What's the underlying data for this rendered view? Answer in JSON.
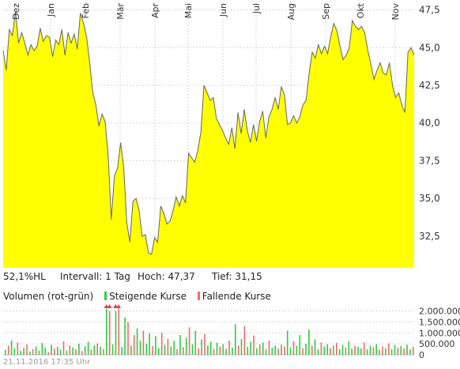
{
  "chart_data": [
    {
      "type": "area",
      "x_ticks": [
        "Dez",
        "Jan",
        "Feb",
        "Mär",
        "Apr",
        "Mai",
        "Jun",
        "Jul",
        "Aug",
        "Sep",
        "Okt",
        "Nov"
      ],
      "y_ticks": [
        "47,5",
        "45,0",
        "42,5",
        "40,0",
        "37,5",
        "35,0",
        "32,5"
      ],
      "ylim": [
        30.4,
        48.0
      ],
      "fill_color": "#ffff00",
      "line_color": "#666666",
      "values": [
        44.8,
        43.5,
        46.2,
        45.8,
        47.4,
        45.3,
        46.0,
        45.3,
        44.5,
        45.2,
        44.8,
        45.1,
        46.3,
        45.4,
        45.8,
        45.7,
        44.4,
        45.5,
        45.2,
        46.2,
        44.5,
        46.0,
        45.3,
        45.9,
        44.9,
        47.3,
        46.6,
        45.7,
        44.0,
        42.0,
        41.2,
        39.8,
        40.6,
        40.1,
        37.8,
        33.6,
        36.5,
        37.0,
        38.7,
        37.1,
        33.4,
        32.1,
        34.8,
        35.0,
        34.2,
        32.5,
        32.6,
        31.4,
        31.3,
        32.4,
        32.1,
        34.5,
        34.0,
        33.3,
        33.5,
        34.2,
        35.1,
        34.5,
        35.2,
        34.7,
        38.0,
        37.7,
        37.4,
        38.2,
        39.4,
        42.5,
        42.0,
        41.5,
        41.7,
        40.3,
        39.9,
        39.5,
        39.0,
        38.6,
        39.7,
        38.3,
        40.7,
        39.3,
        40.9,
        39.5,
        38.7,
        39.9,
        38.8,
        40.1,
        40.8,
        39.0,
        40.4,
        40.9,
        41.7,
        40.9,
        42.4,
        41.9,
        39.9,
        40.0,
        40.5,
        40.0,
        40.4,
        41.2,
        41.5,
        43.3,
        44.7,
        44.3,
        45.2,
        44.6,
        45.1,
        44.6,
        45.7,
        46.6,
        46.1,
        45.1,
        44.2,
        44.5,
        45.0,
        46.8,
        46.4,
        46.2,
        46.4,
        46.0,
        44.8,
        43.9,
        42.9,
        43.5,
        44.0,
        43.3,
        43.2,
        44.0,
        42.5,
        41.7,
        42.0,
        41.2,
        40.7,
        44.7,
        45.0,
        44.5
      ],
      "volume_ylim": [
        0,
        2200000
      ],
      "volume_ticks": [
        "2.000.000",
        "1.500.000",
        "1.000.000",
        "500.000",
        "0"
      ],
      "volume_up_color": "#2ecc40",
      "volume_down_color": "#f06a6a",
      "volume": [
        [
          220000,
          "u"
        ],
        [
          410000,
          "d"
        ],
        [
          650000,
          "u"
        ],
        [
          300000,
          "u"
        ],
        [
          560000,
          "d"
        ],
        [
          180000,
          "u"
        ],
        [
          320000,
          "u"
        ],
        [
          470000,
          "d"
        ],
        [
          150000,
          "u"
        ],
        [
          260000,
          "d"
        ],
        [
          380000,
          "u"
        ],
        [
          200000,
          "d"
        ],
        [
          540000,
          "u"
        ],
        [
          310000,
          "u"
        ],
        [
          120000,
          "d"
        ],
        [
          450000,
          "u"
        ],
        [
          280000,
          "d"
        ],
        [
          360000,
          "u"
        ],
        [
          230000,
          "u"
        ],
        [
          620000,
          "d"
        ],
        [
          190000,
          "u"
        ],
        [
          420000,
          "d"
        ],
        [
          330000,
          "u"
        ],
        [
          250000,
          "d"
        ],
        [
          510000,
          "u"
        ],
        [
          170000,
          "d"
        ],
        [
          390000,
          "u"
        ],
        [
          600000,
          "u"
        ],
        [
          240000,
          "d"
        ],
        [
          430000,
          "u"
        ],
        [
          520000,
          "d"
        ],
        [
          360000,
          "u"
        ],
        [
          270000,
          "d"
        ],
        [
          2100000,
          "u"
        ],
        [
          2000000,
          "d"
        ],
        [
          480000,
          "u"
        ],
        [
          2000000,
          "u"
        ],
        [
          2100000,
          "d"
        ],
        [
          350000,
          "u"
        ],
        [
          1700000,
          "u"
        ],
        [
          1500000,
          "d"
        ],
        [
          420000,
          "u"
        ],
        [
          900000,
          "d"
        ],
        [
          1200000,
          "u"
        ],
        [
          650000,
          "u"
        ],
        [
          1100000,
          "d"
        ],
        [
          520000,
          "u"
        ],
        [
          980000,
          "u"
        ],
        [
          400000,
          "d"
        ],
        [
          860000,
          "u"
        ],
        [
          300000,
          "u"
        ],
        [
          1000000,
          "d"
        ],
        [
          450000,
          "u"
        ],
        [
          720000,
          "d"
        ],
        [
          380000,
          "u"
        ],
        [
          640000,
          "u"
        ],
        [
          260000,
          "d"
        ],
        [
          900000,
          "u"
        ],
        [
          350000,
          "d"
        ],
        [
          780000,
          "u"
        ],
        [
          1250000,
          "d"
        ],
        [
          480000,
          "u"
        ],
        [
          1100000,
          "u"
        ],
        [
          300000,
          "d"
        ],
        [
          700000,
          "u"
        ],
        [
          950000,
          "d"
        ],
        [
          420000,
          "u"
        ],
        [
          600000,
          "u"
        ],
        [
          260000,
          "d"
        ],
        [
          540000,
          "u"
        ],
        [
          380000,
          "d"
        ],
        [
          480000,
          "u"
        ],
        [
          270000,
          "u"
        ],
        [
          650000,
          "d"
        ],
        [
          330000,
          "u"
        ],
        [
          1400000,
          "u"
        ],
        [
          420000,
          "d"
        ],
        [
          720000,
          "u"
        ],
        [
          1300000,
          "d"
        ],
        [
          360000,
          "u"
        ],
        [
          600000,
          "u"
        ],
        [
          880000,
          "d"
        ],
        [
          300000,
          "u"
        ],
        [
          470000,
          "d"
        ],
        [
          560000,
          "u"
        ],
        [
          240000,
          "u"
        ],
        [
          650000,
          "d"
        ],
        [
          320000,
          "u"
        ],
        [
          420000,
          "u"
        ],
        [
          280000,
          "d"
        ],
        [
          460000,
          "u"
        ],
        [
          380000,
          "d"
        ],
        [
          1100000,
          "u"
        ],
        [
          340000,
          "u"
        ],
        [
          620000,
          "d"
        ],
        [
          410000,
          "u"
        ],
        [
          900000,
          "u"
        ],
        [
          300000,
          "d"
        ],
        [
          500000,
          "u"
        ],
        [
          1150000,
          "u"
        ],
        [
          420000,
          "d"
        ],
        [
          700000,
          "u"
        ],
        [
          260000,
          "u"
        ],
        [
          560000,
          "d"
        ],
        [
          380000,
          "u"
        ],
        [
          480000,
          "u"
        ],
        [
          300000,
          "d"
        ],
        [
          420000,
          "u"
        ],
        [
          540000,
          "d"
        ],
        [
          260000,
          "u"
        ],
        [
          450000,
          "u"
        ],
        [
          330000,
          "d"
        ],
        [
          620000,
          "u"
        ],
        [
          280000,
          "u"
        ],
        [
          400000,
          "d"
        ],
        [
          360000,
          "u"
        ],
        [
          300000,
          "u"
        ],
        [
          560000,
          "d"
        ],
        [
          250000,
          "u"
        ],
        [
          420000,
          "u"
        ],
        [
          350000,
          "d"
        ],
        [
          480000,
          "u"
        ],
        [
          220000,
          "u"
        ],
        [
          380000,
          "d"
        ],
        [
          300000,
          "u"
        ],
        [
          520000,
          "d"
        ],
        [
          260000,
          "u"
        ],
        [
          440000,
          "u"
        ],
        [
          320000,
          "d"
        ],
        [
          400000,
          "u"
        ],
        [
          280000,
          "d"
        ],
        [
          460000,
          "u"
        ],
        [
          240000,
          "u"
        ],
        [
          360000,
          "d"
        ]
      ],
      "volume_marker_color": "#e04040"
    }
  ],
  "info": {
    "hl": "52,1%HL",
    "intervall": "Intervall: 1 Tag",
    "hoch_label": "Hoch:",
    "hoch_value": "47,37",
    "tief_label": "Tief:",
    "tief_value": "31,15"
  },
  "volume_legend": {
    "title": "Volumen (rot-grün)",
    "up_label": "Steigende Kurse",
    "down_label": "Fallende Kurse"
  },
  "timestamp": "21.11.2016 17:35 Uhr"
}
